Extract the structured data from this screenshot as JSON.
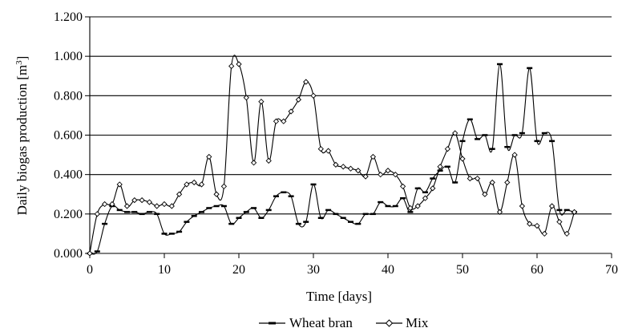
{
  "chart_data": {
    "type": "line",
    "title": "",
    "xlabel": "Time [days]",
    "ylabel": "Daily biogas production [m",
    "ylabel_superscript": "3",
    "ylabel_suffix": "]",
    "xlim": [
      0,
      70
    ],
    "ylim": [
      0,
      1.2
    ],
    "xticks": [
      0,
      10,
      20,
      30,
      40,
      50,
      60,
      70
    ],
    "xtick_labels": [
      "0",
      "10",
      "20",
      "30",
      "40",
      "50",
      "60",
      "70"
    ],
    "yticks": [
      0,
      0.2,
      0.4,
      0.6,
      0.8,
      1.0,
      1.2
    ],
    "ytick_labels": [
      "0.000",
      "0.200",
      "0.400",
      "0.600",
      "0.800",
      "1.000",
      "1.200"
    ],
    "grid": "horizontal",
    "legend_position": "bottom",
    "series": [
      {
        "name": "Wheat bran",
        "marker": "dash",
        "color": "#000000",
        "x": [
          0,
          1,
          2,
          3,
          4,
          5,
          6,
          7,
          8,
          9,
          10,
          11,
          12,
          13,
          14,
          15,
          16,
          17,
          18,
          19,
          20,
          21,
          22,
          23,
          24,
          25,
          26,
          27,
          28,
          29,
          30,
          31,
          32,
          33,
          34,
          35,
          36,
          37,
          38,
          39,
          40,
          41,
          42,
          43,
          44,
          45,
          46,
          47,
          48,
          49,
          50,
          51,
          52,
          53,
          54,
          55,
          56,
          57,
          58,
          59,
          60,
          61,
          62,
          63,
          64,
          65
        ],
        "y": [
          0.0,
          0.01,
          0.15,
          0.24,
          0.22,
          0.21,
          0.21,
          0.2,
          0.21,
          0.2,
          0.1,
          0.1,
          0.11,
          0.16,
          0.19,
          0.21,
          0.23,
          0.24,
          0.24,
          0.15,
          0.18,
          0.21,
          0.23,
          0.18,
          0.22,
          0.29,
          0.31,
          0.29,
          0.15,
          0.16,
          0.35,
          0.18,
          0.22,
          0.2,
          0.18,
          0.16,
          0.15,
          0.2,
          0.2,
          0.26,
          0.24,
          0.24,
          0.28,
          0.21,
          0.33,
          0.31,
          0.38,
          0.42,
          0.44,
          0.36,
          0.57,
          0.68,
          0.58,
          0.6,
          0.53,
          0.96,
          0.54,
          0.6,
          0.61,
          0.94,
          0.57,
          0.61,
          0.57,
          0.22,
          0.22,
          0.21
        ]
      },
      {
        "name": "Mix",
        "marker": "diamond",
        "color": "#000000",
        "x": [
          0,
          1,
          2,
          3,
          4,
          5,
          6,
          7,
          8,
          9,
          10,
          11,
          12,
          13,
          14,
          15,
          16,
          17,
          18,
          19,
          20,
          21,
          22,
          23,
          24,
          25,
          26,
          27,
          28,
          29,
          30,
          31,
          32,
          33,
          34,
          35,
          36,
          37,
          38,
          39,
          40,
          41,
          42,
          43,
          44,
          45,
          46,
          47,
          48,
          49,
          50,
          51,
          52,
          53,
          54,
          55,
          56,
          57,
          58,
          59,
          60,
          61,
          62,
          63,
          64,
          65
        ],
        "y": [
          0.0,
          0.2,
          0.25,
          0.25,
          0.35,
          0.24,
          0.27,
          0.27,
          0.26,
          0.24,
          0.25,
          0.24,
          0.3,
          0.35,
          0.36,
          0.35,
          0.49,
          0.3,
          0.34,
          0.95,
          0.96,
          0.79,
          0.46,
          0.77,
          0.47,
          0.67,
          0.67,
          0.72,
          0.78,
          0.87,
          0.8,
          0.53,
          0.52,
          0.45,
          0.44,
          0.43,
          0.42,
          0.39,
          0.49,
          0.4,
          0.42,
          0.4,
          0.34,
          0.23,
          0.24,
          0.28,
          0.33,
          0.44,
          0.53,
          0.61,
          0.48,
          0.38,
          0.38,
          0.3,
          0.36,
          0.21,
          0.36,
          0.5,
          0.24,
          0.15,
          0.14,
          0.1,
          0.24,
          0.16,
          0.1,
          0.21
        ]
      }
    ]
  }
}
